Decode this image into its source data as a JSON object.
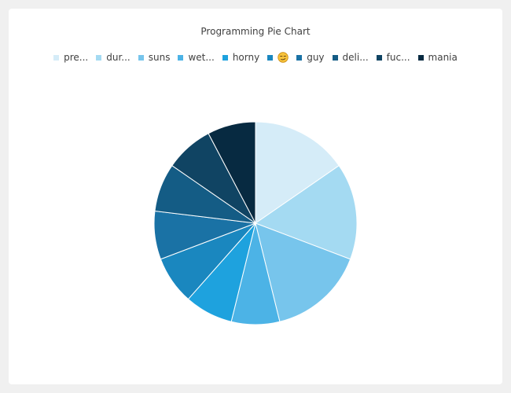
{
  "chart_data": {
    "type": "pie",
    "title": "Programming Pie Chart",
    "legend_position": "top",
    "slices": [
      {
        "label": "pre...",
        "value": 2,
        "color": "#d5ecf8"
      },
      {
        "label": "dur...",
        "value": 2,
        "color": "#a4daf2"
      },
      {
        "label": "suns",
        "value": 2,
        "color": "#77c5ec"
      },
      {
        "label": "wet...",
        "value": 1,
        "color": "#4cb3e6"
      },
      {
        "label": "horny",
        "value": 1,
        "color": "#1ea2de"
      },
      {
        "label": "😏",
        "value": 1,
        "color": "#1a87bf",
        "emoji": true
      },
      {
        "label": "guy",
        "value": 1,
        "color": "#1a72a5"
      },
      {
        "label": "deli...",
        "value": 1,
        "color": "#145c85"
      },
      {
        "label": "fuc...",
        "value": 1,
        "color": "#104463"
      },
      {
        "label": "mania",
        "value": 1,
        "color": "#072a41"
      }
    ]
  }
}
